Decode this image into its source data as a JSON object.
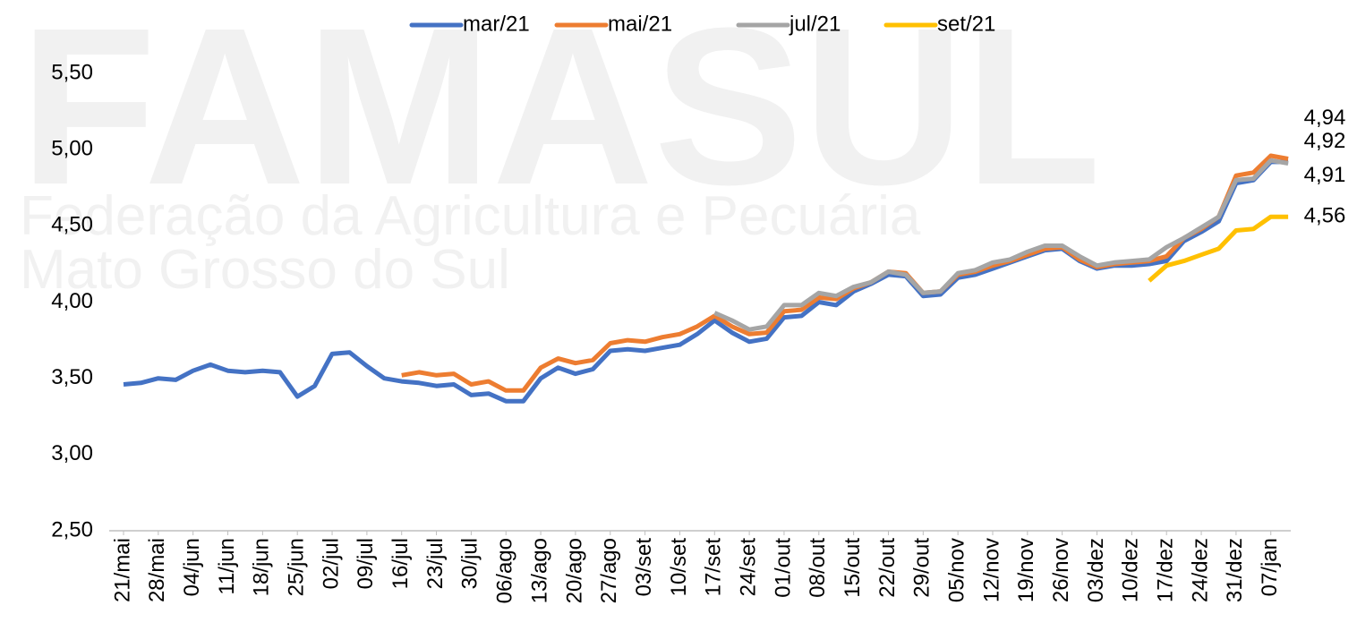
{
  "chart_data": {
    "type": "line",
    "watermark": [
      "FAMASUL",
      "Federação da Agricultura e Pecuária",
      "Mato Grosso do Sul"
    ],
    "categories": [
      "21/mai",
      null,
      "28/mai",
      null,
      "04/jun",
      null,
      "11/jun",
      null,
      "18/jun",
      null,
      "25/jun",
      null,
      "02/jul",
      null,
      "09/jul",
      null,
      "16/jul",
      null,
      "23/jul",
      null,
      "30/jul",
      null,
      "06/ago",
      null,
      "13/ago",
      null,
      "20/ago",
      null,
      "27/ago",
      null,
      "03/set",
      null,
      "10/set",
      null,
      "17/set",
      null,
      "24/set",
      null,
      "01/out",
      null,
      "08/out",
      null,
      "15/out",
      null,
      "22/out",
      null,
      "29/out",
      null,
      "05/nov",
      null,
      "12/nov",
      null,
      "19/nov",
      null,
      "26/nov",
      null,
      "03/dez",
      null,
      "10/dez",
      null,
      "17/dez",
      null,
      "24/dez",
      null,
      "31/dez",
      null,
      "07/jan",
      null
    ],
    "series": [
      {
        "name": "mar/21",
        "color": "#4472c4",
        "values": [
          3.46,
          3.47,
          3.5,
          3.49,
          3.55,
          3.59,
          3.55,
          3.54,
          3.55,
          3.54,
          3.38,
          3.45,
          3.66,
          3.67,
          3.58,
          3.5,
          3.48,
          3.47,
          3.45,
          3.46,
          3.39,
          3.4,
          3.35,
          3.35,
          3.5,
          3.57,
          3.53,
          3.56,
          3.68,
          3.69,
          3.68,
          3.7,
          3.72,
          3.79,
          3.88,
          3.8,
          3.74,
          3.76,
          3.9,
          3.91,
          4.0,
          3.98,
          4.07,
          4.12,
          4.18,
          4.17,
          4.04,
          4.05,
          4.16,
          4.18,
          4.22,
          4.26,
          4.3,
          4.34,
          4.35,
          4.27,
          4.22,
          4.24,
          4.24,
          4.25,
          4.27,
          4.4,
          4.46,
          4.53,
          4.78,
          4.8,
          4.92,
          4.92
        ],
        "value_labels": [
          null,
          null,
          null,
          null,
          null,
          null,
          null,
          null,
          null,
          null,
          null,
          null,
          null,
          null,
          null,
          null,
          null,
          null,
          null,
          null,
          null,
          null,
          null,
          null,
          null,
          null,
          null,
          null,
          null,
          null,
          null,
          null,
          null,
          null,
          null,
          null,
          null,
          null,
          null,
          null,
          null,
          null,
          null,
          null,
          null,
          null,
          null,
          null,
          null,
          null,
          null,
          null,
          null,
          null,
          null,
          null,
          null,
          null,
          null,
          null,
          null,
          null,
          null,
          null,
          null,
          null,
          null,
          "4,92"
        ]
      },
      {
        "name": "mai/21",
        "color": "#ed7d31",
        "values": [
          null,
          null,
          null,
          null,
          null,
          null,
          null,
          null,
          null,
          null,
          null,
          null,
          null,
          null,
          null,
          null,
          3.52,
          3.54,
          3.52,
          3.53,
          3.46,
          3.48,
          3.42,
          3.42,
          3.57,
          3.63,
          3.6,
          3.62,
          3.73,
          3.75,
          3.74,
          3.77,
          3.79,
          3.84,
          3.91,
          3.84,
          3.79,
          3.8,
          3.94,
          3.95,
          4.03,
          4.02,
          4.09,
          4.13,
          4.2,
          4.19,
          4.06,
          4.07,
          4.18,
          4.2,
          4.24,
          4.27,
          4.31,
          4.35,
          4.36,
          4.28,
          4.23,
          4.25,
          4.26,
          4.27,
          4.3,
          4.42,
          4.48,
          4.56,
          4.83,
          4.85,
          4.96,
          4.94
        ],
        "value_labels": [
          null,
          null,
          null,
          null,
          null,
          null,
          null,
          null,
          null,
          null,
          null,
          null,
          null,
          null,
          null,
          null,
          null,
          null,
          null,
          null,
          null,
          null,
          null,
          null,
          null,
          null,
          null,
          null,
          null,
          null,
          null,
          null,
          null,
          null,
          null,
          null,
          null,
          null,
          null,
          null,
          null,
          null,
          null,
          null,
          null,
          null,
          null,
          null,
          null,
          null,
          null,
          null,
          null,
          null,
          null,
          null,
          null,
          null,
          null,
          null,
          null,
          null,
          null,
          null,
          null,
          null,
          null,
          "4,94"
        ]
      },
      {
        "name": "jul/21",
        "color": "#a5a5a5",
        "values": [
          null,
          null,
          null,
          null,
          null,
          null,
          null,
          null,
          null,
          null,
          null,
          null,
          null,
          null,
          null,
          null,
          null,
          null,
          null,
          null,
          null,
          null,
          null,
          null,
          null,
          null,
          null,
          null,
          null,
          null,
          null,
          null,
          null,
          null,
          3.93,
          3.88,
          3.82,
          3.84,
          3.98,
          3.98,
          4.06,
          4.04,
          4.1,
          4.13,
          4.2,
          4.18,
          4.06,
          4.07,
          4.19,
          4.21,
          4.26,
          4.28,
          4.33,
          4.37,
          4.37,
          4.3,
          4.24,
          4.26,
          4.27,
          4.28,
          4.36,
          4.42,
          4.49,
          4.56,
          4.8,
          4.81,
          4.93,
          4.91
        ],
        "value_labels": [
          null,
          null,
          null,
          null,
          null,
          null,
          null,
          null,
          null,
          null,
          null,
          null,
          null,
          null,
          null,
          null,
          null,
          null,
          null,
          null,
          null,
          null,
          null,
          null,
          null,
          null,
          null,
          null,
          null,
          null,
          null,
          null,
          null,
          null,
          null,
          null,
          null,
          null,
          null,
          null,
          null,
          null,
          null,
          null,
          null,
          null,
          null,
          null,
          null,
          null,
          null,
          null,
          null,
          null,
          null,
          null,
          null,
          null,
          null,
          null,
          null,
          null,
          null,
          null,
          null,
          null,
          null,
          "4,91"
        ]
      },
      {
        "name": "set/21",
        "color": "#ffc000",
        "values": [
          null,
          null,
          null,
          null,
          null,
          null,
          null,
          null,
          null,
          null,
          null,
          null,
          null,
          null,
          null,
          null,
          null,
          null,
          null,
          null,
          null,
          null,
          null,
          null,
          null,
          null,
          null,
          null,
          null,
          null,
          null,
          null,
          null,
          null,
          null,
          null,
          null,
          null,
          null,
          null,
          null,
          null,
          null,
          null,
          null,
          null,
          null,
          null,
          null,
          null,
          null,
          null,
          null,
          null,
          null,
          null,
          null,
          null,
          null,
          4.14,
          4.24,
          4.27,
          4.31,
          4.35,
          4.47,
          4.48,
          4.56,
          4.56
        ],
        "value_labels": [
          null,
          null,
          null,
          null,
          null,
          null,
          null,
          null,
          null,
          null,
          null,
          null,
          null,
          null,
          null,
          null,
          null,
          null,
          null,
          null,
          null,
          null,
          null,
          null,
          null,
          null,
          null,
          null,
          null,
          null,
          null,
          null,
          null,
          null,
          null,
          null,
          null,
          null,
          null,
          null,
          null,
          null,
          null,
          null,
          null,
          null,
          null,
          null,
          null,
          null,
          null,
          null,
          null,
          null,
          null,
          null,
          null,
          null,
          null,
          null,
          null,
          null,
          null,
          null,
          null,
          null,
          null,
          "4,56"
        ]
      }
    ],
    "ylim": [
      2.5,
      5.75
    ],
    "yticks": [
      {
        "value": 2.5,
        "label": "2,50"
      },
      {
        "value": 3.0,
        "label": "3,00"
      },
      {
        "value": 3.5,
        "label": "3,50"
      },
      {
        "value": 4.0,
        "label": "4,00"
      },
      {
        "value": 4.5,
        "label": "4,50"
      },
      {
        "value": 5.0,
        "label": "5,00"
      },
      {
        "value": 5.5,
        "label": "5,50"
      }
    ],
    "grid": false,
    "legend": "top"
  }
}
